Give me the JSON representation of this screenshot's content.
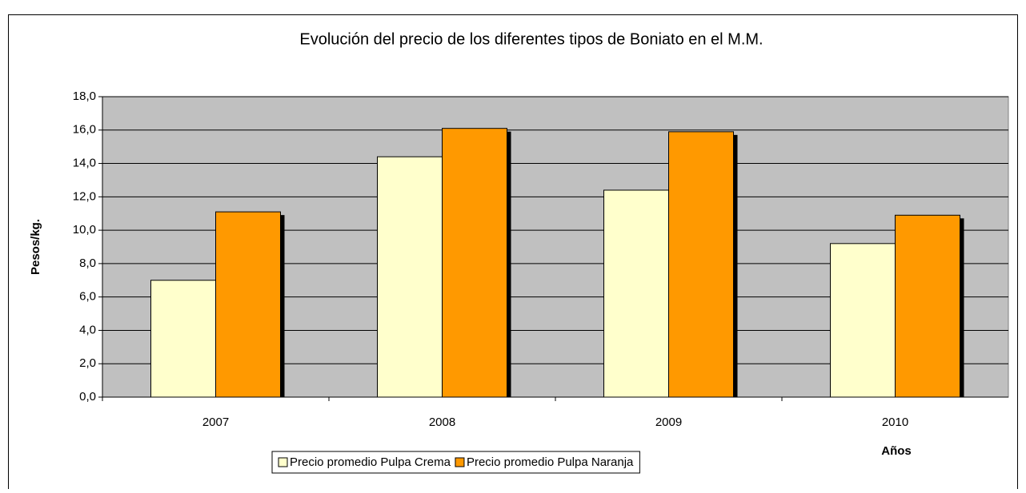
{
  "chart_data": {
    "type": "bar",
    "title": "Evolución del precio de los diferentes tipos de Boniato en el M.M.",
    "y_label": "Pesos/kg.",
    "x_label": "Años",
    "categories": [
      "2007",
      "2008",
      "2009",
      "2010"
    ],
    "series": [
      {
        "name": "Precio promedio Pulpa Crema",
        "color": "#ffffcc",
        "values": [
          7.0,
          14.4,
          12.4,
          9.2
        ]
      },
      {
        "name": "Precio promedio Pulpa Naranja",
        "color": "#ff9900",
        "values": [
          11.1,
          16.1,
          15.9,
          10.9
        ]
      }
    ],
    "ylim": [
      0,
      18
    ],
    "yticks": [
      {
        "value": 0,
        "label": "0,0"
      },
      {
        "value": 2,
        "label": "2,0"
      },
      {
        "value": 4,
        "label": "4,0"
      },
      {
        "value": 6,
        "label": "6,0"
      },
      {
        "value": 8,
        "label": "8,0"
      },
      {
        "value": 10,
        "label": "10,0"
      },
      {
        "value": 12,
        "label": "12,0"
      },
      {
        "value": 14,
        "label": "14,0"
      },
      {
        "value": 16,
        "label": "16,0"
      },
      {
        "value": 18,
        "label": "18,0"
      }
    ],
    "grid": true,
    "plot_background": "#c0c0c0"
  }
}
